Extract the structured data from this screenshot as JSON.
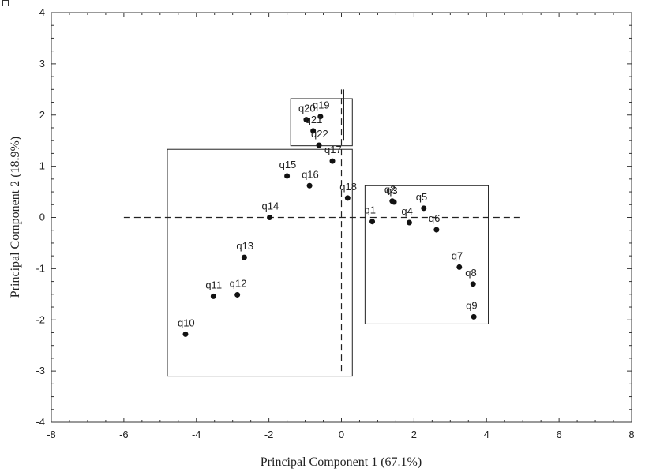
{
  "chart_data": {
    "type": "scatter",
    "xlabel": "Principal Component 1 (67.1%)",
    "ylabel": "Principal Component 2 (18.9%)",
    "xlim": [
      -8,
      8
    ],
    "ylim": [
      -4,
      4
    ],
    "xticks": [
      -8,
      -6,
      -4,
      -2,
      0,
      2,
      4,
      6,
      8
    ],
    "yticks": [
      -4,
      -3,
      -2,
      -1,
      0,
      1,
      2,
      3,
      4
    ],
    "grid": false,
    "reference_lines": {
      "horizontal": {
        "y": 0,
        "x_from": -6,
        "x_to": 5,
        "style": "dashed"
      },
      "vertical": {
        "x": 0,
        "y_from": -3,
        "y_to": 2.5,
        "style": "dashed"
      }
    },
    "boxes": [
      {
        "x0": -4.8,
        "x1": 0.3,
        "y0": -3.1,
        "y1": 1.33
      },
      {
        "x0": -1.4,
        "x1": 0.3,
        "y0": 1.4,
        "y1": 2.32
      },
      {
        "x0": 0.65,
        "x1": 4.05,
        "y0": -2.08,
        "y1": 0.62
      }
    ],
    "points": [
      {
        "label": "q1",
        "x": 0.85,
        "y": -0.08
      },
      {
        "label": "q2",
        "x": 1.4,
        "y": 0.32
      },
      {
        "label": "q3",
        "x": 1.45,
        "y": 0.3
      },
      {
        "label": "q4",
        "x": 1.87,
        "y": -0.1
      },
      {
        "label": "q5",
        "x": 2.27,
        "y": 0.18
      },
      {
        "label": "q6",
        "x": 2.62,
        "y": -0.24
      },
      {
        "label": "q7",
        "x": 3.25,
        "y": -0.97
      },
      {
        "label": "q8",
        "x": 3.63,
        "y": -1.3
      },
      {
        "label": "q9",
        "x": 3.65,
        "y": -1.94
      },
      {
        "label": "q10",
        "x": -4.3,
        "y": -2.28
      },
      {
        "label": "q11",
        "x": -3.53,
        "y": -1.54
      },
      {
        "label": "q12",
        "x": -2.87,
        "y": -1.51
      },
      {
        "label": "q13",
        "x": -2.68,
        "y": -0.78
      },
      {
        "label": "q14",
        "x": -1.98,
        "y": 0.0
      },
      {
        "label": "q15",
        "x": -1.5,
        "y": 0.81
      },
      {
        "label": "q16",
        "x": -0.88,
        "y": 0.62
      },
      {
        "label": "q17",
        "x": -0.25,
        "y": 1.1
      },
      {
        "label": "q18",
        "x": 0.17,
        "y": 0.38
      },
      {
        "label": "q19",
        "x": -0.58,
        "y": 1.97
      },
      {
        "label": "q20",
        "x": -0.97,
        "y": 1.91
      },
      {
        "label": "q21",
        "x": -0.78,
        "y": 1.69
      },
      {
        "label": "q22",
        "x": -0.62,
        "y": 1.41
      }
    ]
  }
}
